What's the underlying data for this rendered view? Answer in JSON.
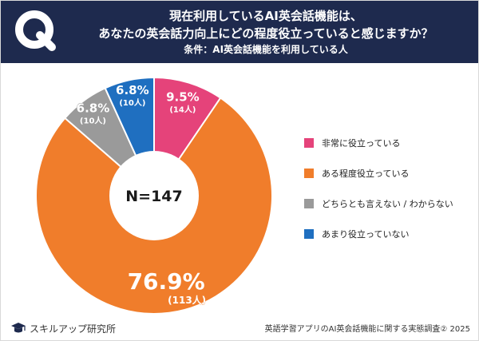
{
  "header": {
    "line1": "現在利用しているAI英会話機能は、",
    "line2": "あなたの英会話力向上にどの程度役立っていると感じますか？",
    "line3": "条件：AI英会話機能を利用している人"
  },
  "chart_data": {
    "type": "pie",
    "variant": "donut",
    "center_label": "N=147",
    "slices": [
      {
        "label": "非常に役立っている",
        "percent": 9.5,
        "percent_label": "9.5%",
        "count_label": "(14人)",
        "color": "#e5437a"
      },
      {
        "label": "ある程度役立っている",
        "percent": 76.9,
        "percent_label": "76.9%",
        "count_label": "(113人)",
        "color": "#f07d2b"
      },
      {
        "label": "どちらとも言えない / わからない",
        "percent": 6.8,
        "percent_label": "6.8%",
        "count_label": "(10人)",
        "color": "#9a9a9a"
      },
      {
        "label": "あまり役立っていない",
        "percent": 6.8,
        "percent_label": "6.8%",
        "count_label": "(10人)",
        "color": "#1f6fc0"
      }
    ],
    "legend_position": "right"
  },
  "footer": {
    "brand": "スキルアップ研究所",
    "source": "英語学習アプリのAI英会話機能に関する実態調査② 2025"
  },
  "icons": {
    "header_mark": "q-mark-icon",
    "brand_logo": "graduation-cap-logo-icon"
  }
}
